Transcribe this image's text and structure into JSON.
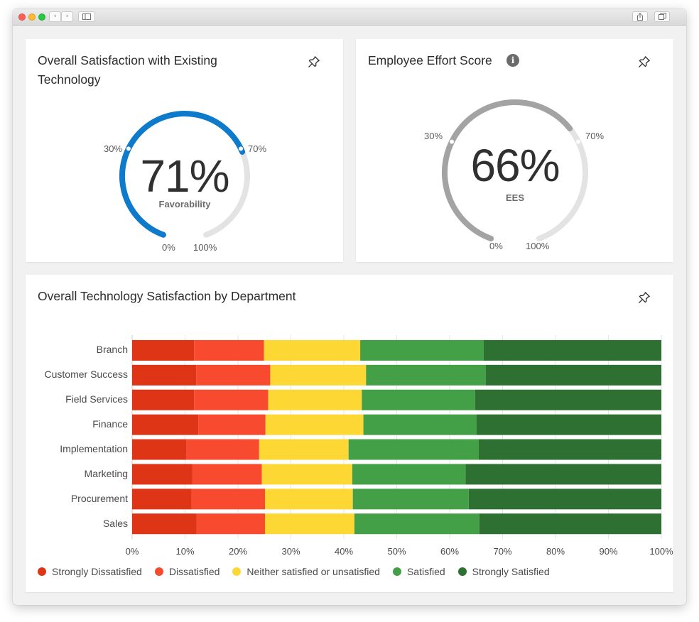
{
  "toolbar": {
    "back_glyph": "‹",
    "forward_glyph": "›"
  },
  "cards": {
    "satisfaction": {
      "title": "Overall Satisfaction with Existing Technology",
      "value_text": "71%",
      "value_fraction": 0.71,
      "label": "Favorability",
      "tick_min": "0%",
      "tick_max": "100%",
      "tick_low": "30%",
      "tick_high": "70%",
      "color": "#0d7acb",
      "track_color": "#e3e3e3"
    },
    "effort": {
      "title": "Employee Effort Score",
      "info_glyph": "i",
      "value_text": "66%",
      "value_fraction": 0.66,
      "label": "EES",
      "tick_min": "0%",
      "tick_max": "100%",
      "tick_low": "30%",
      "tick_high": "70%",
      "color": "#a3a3a3",
      "track_color": "#e3e3e3"
    },
    "department": {
      "title": "Overall Technology Satisfaction by Department"
    }
  },
  "chart_data": {
    "type": "bar",
    "orientation": "horizontal",
    "stacked": true,
    "categories": [
      "Branch",
      "Customer Success",
      "Field Services",
      "Finance",
      "Implementation",
      "Marketing",
      "Procurement",
      "Sales"
    ],
    "series": [
      {
        "name": "Strongly Dissatisfied",
        "color": "#de3517",
        "values": [
          11.7,
          12.1,
          11.7,
          12.5,
          10.3,
          11.4,
          11.2,
          12.2
        ]
      },
      {
        "name": "Dissatisfied",
        "color": "#f84a2f",
        "values": [
          13.2,
          14.0,
          14.0,
          12.7,
          13.7,
          13.1,
          13.9,
          12.9
        ]
      },
      {
        "name": "Neither satisfied or unsatisfied",
        "color": "#fdd835",
        "values": [
          18.2,
          18.1,
          17.7,
          18.5,
          16.9,
          17.1,
          16.6,
          16.9
        ]
      },
      {
        "name": "Satisfied",
        "color": "#43a047",
        "values": [
          23.3,
          22.6,
          21.4,
          21.4,
          24.6,
          21.4,
          21.9,
          23.6
        ]
      },
      {
        "name": "Strongly Satisfied",
        "color": "#2e7032",
        "values": [
          33.6,
          33.2,
          35.2,
          34.9,
          34.5,
          37.0,
          36.4,
          34.4
        ]
      }
    ],
    "xlim": [
      0,
      100
    ],
    "x_ticks": [
      "0%",
      "10%",
      "20%",
      "30%",
      "40%",
      "50%",
      "60%",
      "70%",
      "80%",
      "90%",
      "100%"
    ],
    "grid": true,
    "legend_position": "bottom"
  }
}
